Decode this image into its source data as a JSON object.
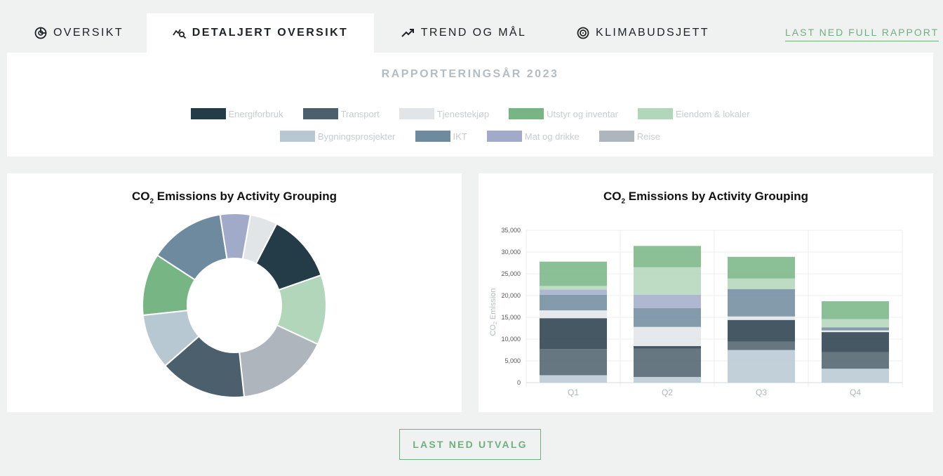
{
  "tabs": [
    {
      "label": "OVERSIKT",
      "icon": "pie-icon",
      "active": false
    },
    {
      "label": "DETALJERT OVERSIKT",
      "icon": "chart-search-icon",
      "active": true
    },
    {
      "label": "TREND OG MÅL",
      "icon": "trend-up-icon",
      "active": false
    },
    {
      "label": "KLIMABUDSJETT",
      "icon": "target-icon",
      "active": false
    }
  ],
  "report_link": "LAST NED FULL RAPPORT",
  "year_title": "RAPPORTERINGSÅR 2023",
  "legend": [
    {
      "label": "Energiforbruk",
      "color": "#243b48"
    },
    {
      "label": "Transport",
      "color": "#4b5f6c"
    },
    {
      "label": "Tjenestekjøp",
      "color": "#e2e5e7"
    },
    {
      "label": "Utstyr og inventar",
      "color": "#77b585"
    },
    {
      "label": "Eiendom & lokaler",
      "color": "#b2d6b9"
    },
    {
      "label": "Bygningsprosjekter",
      "color": "#b7c8d2"
    },
    {
      "label": "IKT",
      "color": "#6e8a9e"
    },
    {
      "label": "Mat og drikke",
      "color": "#a1abc9"
    },
    {
      "label": "Reise",
      "color": "#aeb5bd"
    }
  ],
  "donut_title": {
    "main": "CO",
    "sub": "2",
    "rest": " Emissions by Activity Grouping"
  },
  "bar_title": {
    "main": "CO",
    "sub": "2",
    "rest": " Emissions by Activity Grouping"
  },
  "bar_ylabel": {
    "main": "CO",
    "sub": "2",
    "rest": " Emission"
  },
  "download_button": "LAST NED UTVALG",
  "chart_data": [
    {
      "type": "pie",
      "variant": "donut",
      "slices": [
        {
          "label": "Energiforbruk",
          "value": 12.3
        },
        {
          "label": "Eiendom & lokaler",
          "value": 12.5
        },
        {
          "label": "Reise",
          "value": 16.7
        },
        {
          "label": "Transport",
          "value": 15.6
        },
        {
          "label": "Bygningsprosjekter",
          "value": 9.9
        },
        {
          "label": "Utstyr og inventar",
          "value": 11.1
        },
        {
          "label": "IKT",
          "value": 13.6
        },
        {
          "label": "Mat og drikke",
          "value": 5.4
        },
        {
          "label": "Tjenestekjøp",
          "value": 4.9
        }
      ]
    },
    {
      "type": "bar",
      "stacked": true,
      "categories": [
        "Q1",
        "Q2",
        "Q3",
        "Q4"
      ],
      "ylim": [
        0,
        35000
      ],
      "yticks": [
        "0",
        "5,000",
        "10,000",
        "15,000",
        "20,000",
        "25,000",
        "30,000",
        "35,000"
      ],
      "grid": true,
      "series": [
        {
          "name": "Bygningsprosjekter",
          "values": [
            1700,
            1300,
            7500,
            3200
          ]
        },
        {
          "name": "Transport",
          "values": [
            6000,
            6500,
            1900,
            3800
          ]
        },
        {
          "name": "Energiforbruk",
          "values": [
            7100,
            600,
            5000,
            4600
          ]
        },
        {
          "name": "Tjenestekjøp",
          "values": [
            1800,
            4400,
            800,
            400
          ]
        },
        {
          "name": "IKT",
          "values": [
            3600,
            4300,
            6300,
            700
          ]
        },
        {
          "name": "Mat og drikke",
          "values": [
            1200,
            3100,
            0,
            0
          ]
        },
        {
          "name": "Eiendom & lokaler",
          "values": [
            800,
            6300,
            2400,
            1900
          ]
        },
        {
          "name": "Utstyr og inventar",
          "values": [
            5600,
            4900,
            5000,
            4100
          ]
        }
      ]
    }
  ]
}
